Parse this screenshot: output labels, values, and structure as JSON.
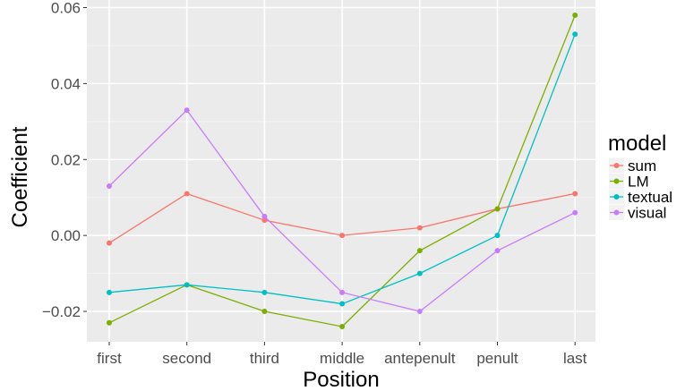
{
  "chart_data": {
    "type": "line",
    "categories": [
      "first",
      "second",
      "third",
      "middle",
      "antepenult",
      "penult",
      "last"
    ],
    "xlabel": "Position",
    "ylabel": "Coefficient",
    "ylim": [
      -0.028,
      0.062
    ],
    "yticks": [
      -0.02,
      0.0,
      0.02,
      0.04,
      0.06
    ],
    "ytick_labels": [
      "−0.02",
      "0.00",
      "0.02",
      "0.04",
      "0.06"
    ],
    "grid": true,
    "background": "#ebebeb",
    "legend": {
      "title": "model",
      "placement": "right"
    },
    "series": [
      {
        "name": "sum",
        "color": "#f8766d",
        "values": [
          -0.002,
          0.011,
          0.004,
          0.0,
          0.002,
          0.007,
          0.011
        ]
      },
      {
        "name": "LM",
        "color": "#7cae00",
        "values": [
          -0.023,
          -0.013,
          -0.02,
          -0.024,
          -0.004,
          0.007,
          0.058
        ]
      },
      {
        "name": "textual",
        "color": "#00bfc4",
        "values": [
          -0.015,
          -0.013,
          -0.015,
          -0.018,
          -0.01,
          0.0,
          0.053
        ]
      },
      {
        "name": "visual",
        "color": "#c77cff",
        "values": [
          0.013,
          0.033,
          0.005,
          -0.015,
          -0.02,
          -0.004,
          0.006
        ]
      }
    ]
  }
}
